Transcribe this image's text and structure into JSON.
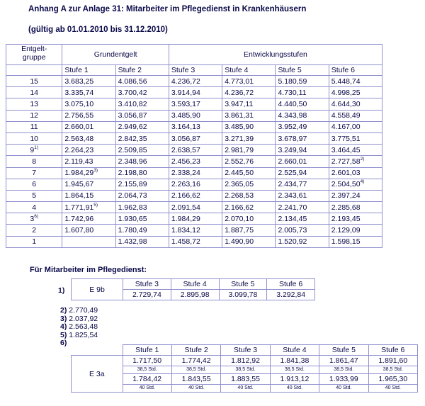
{
  "header": {
    "title": "Anhang A zur Anlage 31: Mitarbeiter im Pflegedienst in Krankenhäusern",
    "subtitle": "(gültig ab 01.01.2010 bis 31.12.2010)"
  },
  "main_table": {
    "group_header": [
      "Entgelt-",
      "gruppe"
    ],
    "base_header": "Grundentgelt",
    "dev_header": "Entwicklungsstufen",
    "columns": [
      "Stufe 1",
      "Stufe 2",
      "Stufe 3",
      "Stufe 4",
      "Stufe 5",
      "Stufe 6"
    ],
    "rows": [
      {
        "group": "15",
        "cells": [
          "3.683,25",
          "4.086,56",
          "4.236,72",
          "4.773,01",
          "5.180,59",
          "5.448,74"
        ]
      },
      {
        "group": "14",
        "cells": [
          "3.335,74",
          "3.700,42",
          "3.914,94",
          "4.236,72",
          "4.730,11",
          "4.998,25"
        ]
      },
      {
        "group": "13",
        "cells": [
          "3.075,10",
          "3.410,82",
          "3.593,17",
          "3.947,11",
          "4.440,50",
          "4.644,30"
        ]
      },
      {
        "group": "12",
        "cells": [
          "2.756,55",
          "3.056,87",
          "3.485,90",
          "3.861,31",
          "4.343,98",
          "4.558,49"
        ]
      },
      {
        "group": "11",
        "cells": [
          "2.660,01",
          "2.949,62",
          "3.164,13",
          "3.485,90",
          "3.952,49",
          "4.167,00"
        ]
      },
      {
        "group": "10",
        "cells": [
          "2.563,48",
          "2.842,35",
          "3.056,87",
          "3.271,39",
          "3.678,97",
          "3.775,51"
        ]
      },
      {
        "group": "9",
        "group_note": "1)",
        "cells": [
          "2.264,23",
          "2.509,85",
          "2.638,57",
          "2.981,79",
          "3.249,94",
          "3.464,45"
        ]
      },
      {
        "group": "8",
        "cells": [
          "2.119,43",
          "2.348,96",
          "2.456,23",
          "2.552,76",
          "2.660,01",
          {
            "value": "2.727,58",
            "note": "2)"
          }
        ]
      },
      {
        "group": "7",
        "cells": [
          {
            "value": "1.984,29",
            "note": "3)"
          },
          "2.198,80",
          "2.338,24",
          "2.445,50",
          "2.525,94",
          "2.601,03"
        ]
      },
      {
        "group": "6",
        "cells": [
          "1.945,67",
          "2.155,89",
          "2.263,16",
          "2.365,05",
          "2.434,77",
          {
            "value": "2.504,50",
            "note": "4)"
          }
        ]
      },
      {
        "group": "5",
        "cells": [
          "1.864,15",
          "2.064,73",
          "2.166,62",
          "2.268,53",
          "2.343,61",
          "2.397,24"
        ]
      },
      {
        "group": "4",
        "cells": [
          {
            "value": "1.771,91",
            "note": "5)"
          },
          "1.962,83",
          "2.091,54",
          "2.166,62",
          "2.241,70",
          "2.285,68"
        ]
      },
      {
        "group": "3",
        "group_note": "6)",
        "cells": [
          "1.742,96",
          "1.930,65",
          "1.984,29",
          "2.070,10",
          "2.134,45",
          "2.193,45"
        ]
      },
      {
        "group": "2",
        "cells": [
          "1.607,80",
          "1.780,49",
          "1.834,12",
          "1.887,75",
          "2.005,73",
          "2.129,09"
        ]
      },
      {
        "group": "1",
        "cells": [
          null,
          "1.432,98",
          "1.458,72",
          "1.490,90",
          "1.520,92",
          "1.598,15"
        ]
      }
    ]
  },
  "care_heading": "Für Mitarbeiter im Pflegedienst:",
  "e9b": {
    "marker": "1)",
    "group": "E 9b",
    "columns": [
      "Stufe 3",
      "Stufe 4",
      "Stufe 5",
      "Stufe 6"
    ],
    "values": [
      "2.729,74",
      "2.895,98",
      "3.099,78",
      "3.292,84"
    ]
  },
  "footnotes": [
    {
      "marker": "2)",
      "value": "2.770,49"
    },
    {
      "marker": "3)",
      "value": "2.037,92"
    },
    {
      "marker": "4)",
      "value": "2.563,48"
    },
    {
      "marker": "5)",
      "value": "1.825,54"
    },
    {
      "marker": "6)"
    }
  ],
  "e3a": {
    "group": "E 3a",
    "columns": [
      "Stufe 1",
      "Stufe 2",
      "Stufe 3",
      "Stufe 4",
      "Stufe 5",
      "Stufe 6"
    ],
    "rows": [
      {
        "values": [
          "1.717,50",
          "1.774,42",
          "1.812,92",
          "1.841,38",
          "1.861,47",
          "1.891,60"
        ],
        "hours": [
          "38,5 Std.",
          "38,5 Std.",
          "38,5 Std.",
          "38,5 Std.",
          "38,5 Std.",
          "38,5 Std."
        ]
      },
      {
        "values": [
          "1.784,42",
          "1.843,55",
          "1.883,55",
          "1.913,12",
          "1.933,99",
          "1.965,30"
        ],
        "hours": [
          "40 Std.",
          "40 Std.",
          "40 Std.",
          "40 Std.",
          "40 Std.",
          "40 Std."
        ]
      }
    ]
  }
}
